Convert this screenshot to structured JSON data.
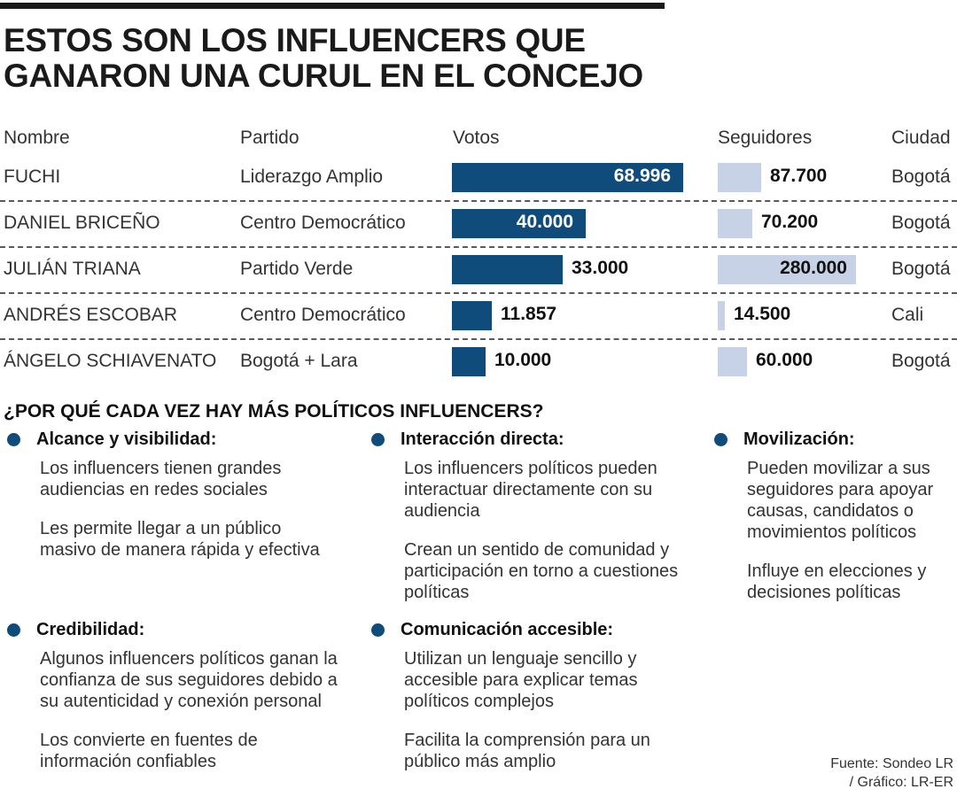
{
  "title": [
    "ESTOS SON LOS INFLUENCERS QUE",
    "GANARON UNA CURUL EN EL CONCEJO"
  ],
  "colors": {
    "votes": "#0f4c7c",
    "followers": "#c7d2e6",
    "accent": "#0f4c7c"
  },
  "chart_data": {
    "type": "table",
    "columns": [
      "Nombre",
      "Partido",
      "Votos",
      "Seguidores",
      "Ciudad"
    ],
    "rows": [
      {
        "name": "FUCHI",
        "party": "Liderazgo Amplio",
        "votes": 68996,
        "votes_label": "68.996",
        "followers": 87700,
        "followers_label": "87.700",
        "city": "Bogotá"
      },
      {
        "name": "DANIEL BRICEÑO",
        "party": "Centro Democrático",
        "votes": 40000,
        "votes_label": "40.000",
        "followers": 70200,
        "followers_label": "70.200",
        "city": "Bogotá"
      },
      {
        "name": "JULIÁN TRIANA",
        "party": "Partido Verde",
        "votes": 33000,
        "votes_label": "33.000",
        "followers": 280000,
        "followers_label": "280.000",
        "city": "Bogotá"
      },
      {
        "name": "ANDRÉS ESCOBAR",
        "party": "Centro Democrático",
        "votes": 11857,
        "votes_label": "11.857",
        "followers": 14500,
        "followers_label": "14.500",
        "city": "Cali"
      },
      {
        "name": "ÁNGELO SCHIAVENATO",
        "party": "Bogotá + Lara",
        "votes": 10000,
        "votes_label": "10.000",
        "followers": 60000,
        "followers_label": "60.000",
        "city": "Bogotá"
      }
    ]
  },
  "section_title": "¿POR QUÉ CADA VEZ HAY MÁS POLÍTICOS INFLUENCERS?",
  "reasons": [
    {
      "title": "Alcance y visibilidad:",
      "paragraphs": [
        "Los influencers tienen grandes audiencias en redes sociales",
        "Les permite llegar a un público masivo de manera rápida y efectiva"
      ]
    },
    {
      "title": "Interacción directa:",
      "paragraphs": [
        "Los influencers políticos pueden interactuar directamente con su audiencia",
        "Crean un sentido de comunidad y participación en torno a cuestiones políticas"
      ]
    },
    {
      "title": "Movilización:",
      "paragraphs": [
        "Pueden movilizar a sus seguidores para apoyar causas,  candidatos o movimientos políticos",
        "Influye en elecciones y decisiones políticas"
      ]
    },
    {
      "title": "Credibilidad:",
      "paragraphs": [
        "Algunos influencers políticos ganan la confianza de sus seguidores debido a su autenticidad y conexión personal",
        " Los convierte en fuentes de información confiables"
      ]
    },
    {
      "title": "Comunicación accesible:",
      "paragraphs": [
        "Utilizan un lenguaje sencillo y accesible para explicar temas políticos complejos",
        "Facilita la comprensión para un público más amplio"
      ]
    }
  ],
  "source": [
    "Fuente: Sondeo LR",
    "/ Gráfico: LR-ER"
  ]
}
